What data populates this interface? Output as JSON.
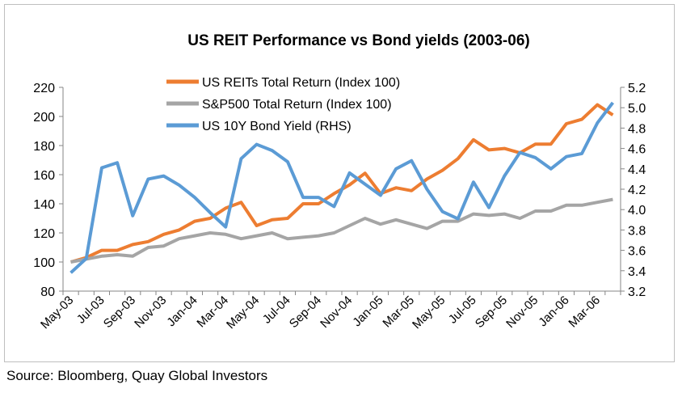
{
  "source": "Source: Bloomberg, Quay Global Investors",
  "chart_data": {
    "type": "line",
    "title": "US REIT Performance vs Bond yields (2003-06)",
    "categories": [
      "May-03",
      "Jun-03",
      "Jul-03",
      "Aug-03",
      "Sep-03",
      "Oct-03",
      "Nov-03",
      "Dec-03",
      "Jan-04",
      "Feb-04",
      "Mar-04",
      "Apr-04",
      "May-04",
      "Jun-04",
      "Jul-04",
      "Aug-04",
      "Sep-04",
      "Oct-04",
      "Nov-04",
      "Dec-04",
      "Jan-05",
      "Feb-05",
      "Mar-05",
      "Apr-05",
      "May-05",
      "Jun-05",
      "Jul-05",
      "Aug-05",
      "Sep-05",
      "Oct-05",
      "Nov-05",
      "Dec-05",
      "Jan-06",
      "Feb-06",
      "Mar-06",
      "Apr-06"
    ],
    "xtick_labels": [
      "May-03",
      "Jul-03",
      "Sep-03",
      "Nov-03",
      "Jan-04",
      "Mar-04",
      "May-04",
      "Jul-04",
      "Sep-04",
      "Nov-04",
      "Jan-05",
      "Mar-05",
      "May-05",
      "Jul-05",
      "Sep-05",
      "Nov-05",
      "Jan-06",
      "Mar-06"
    ],
    "ylim": [
      80,
      220
    ],
    "yticks": [
      80,
      100,
      120,
      140,
      160,
      180,
      200,
      220
    ],
    "y2lim": [
      3.2,
      5.2
    ],
    "y2ticks": [
      "3.2",
      "3.4",
      "3.6",
      "3.8",
      "4.0",
      "4.2",
      "4.4",
      "4.6",
      "4.8",
      "5.0",
      "5.2"
    ],
    "legend_position": "top-center",
    "grid": false,
    "series": [
      {
        "name": "US REITs Total Return (Index 100)",
        "axis": "left",
        "color": "#ed7d31",
        "values": [
          100,
          103,
          108,
          108,
          112,
          114,
          119,
          122,
          128,
          130,
          137,
          141,
          125,
          129,
          130,
          140,
          140,
          147,
          153,
          161,
          147,
          151,
          149,
          157,
          163,
          171,
          184,
          177,
          178,
          175,
          181,
          181,
          195,
          198,
          208,
          201
        ]
      },
      {
        "name": "S&P500 Total Return (Index 100)",
        "axis": "left",
        "color": "#a5a5a5",
        "values": [
          100,
          102,
          104,
          105,
          104,
          110,
          111,
          116,
          118,
          120,
          119,
          116,
          118,
          120,
          116,
          117,
          118,
          120,
          125,
          130,
          126,
          129,
          126,
          123,
          128,
          128,
          133,
          132,
          133,
          130,
          135,
          135,
          139,
          139,
          141,
          143
        ]
      },
      {
        "name": "US 10Y Bond Yield (RHS)",
        "axis": "right",
        "color": "#5b9bd5",
        "values": [
          3.38,
          3.52,
          4.41,
          4.46,
          3.94,
          4.3,
          4.33,
          4.24,
          4.12,
          3.97,
          3.83,
          4.5,
          4.64,
          4.58,
          4.47,
          4.12,
          4.12,
          4.03,
          4.36,
          4.25,
          4.14,
          4.4,
          4.48,
          4.2,
          3.98,
          3.91,
          4.27,
          4.02,
          4.33,
          4.56,
          4.51,
          4.4,
          4.52,
          4.55,
          4.85,
          5.05
        ]
      }
    ]
  }
}
